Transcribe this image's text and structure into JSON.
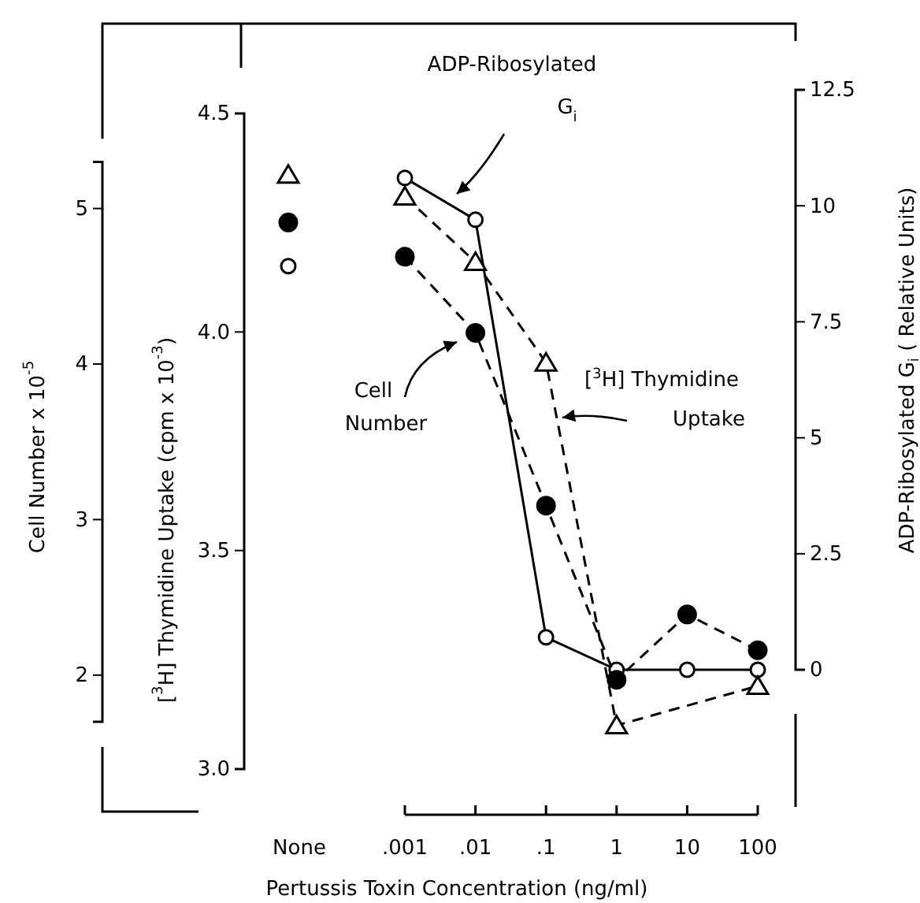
{
  "chart_data": {
    "type": "line",
    "xlabel": "Pertussis Toxin Concentration (ng/ml)",
    "ylabel": "[$^{3}$H] Thymidine Uptake  (cpm x 10$^{-3}$)",
    "y2label": "ADP-Ribosylated G$_{i}$  ( Relative Units)",
    "y3label": "Cell Number x 10$^{-5}$",
    "categories": [
      "None",
      ".001",
      ".01",
      ".1",
      "1",
      "10",
      "100"
    ],
    "ylim": [
      3.0,
      4.5
    ],
    "yticks": [
      {
        "value": 3.0,
        "label": "3.0"
      },
      {
        "value": 3.5,
        "label": "3.5"
      },
      {
        "value": 4.0,
        "label": "4.0"
      },
      {
        "value": 4.5,
        "label": "4.5"
      }
    ],
    "y2lim": [
      0,
      12.5
    ],
    "y2ticks": [
      0,
      2.5,
      5,
      7.5,
      10,
      12.5
    ],
    "y3lim": [
      1.7,
      5.3
    ],
    "y3ticks": [
      2,
      3,
      4,
      5
    ],
    "grid": false,
    "legend": false,
    "series": [
      {
        "name": "ADP-Ribosylated G$_{i}$",
        "color": "#000000",
        "axis": "y2",
        "marker": "circle",
        "line_style": "solid",
        "values": [
          null,
          10.6,
          9.7,
          0.7,
          0,
          0,
          0
        ]
      },
      {
        "name": "Cell Number",
        "color": "#000000",
        "axis": "y3",
        "marker": "circle",
        "line_style": "dashed",
        "values": [
          null,
          4.69,
          4.2,
          3.09,
          1.97,
          2.39,
          2.16
        ]
      },
      {
        "name": "[$^{3}$H] Thymidine Uptake",
        "color": "#000000",
        "marker": "triangle",
        "line_style": "dashed",
        "values": [
          null,
          4.31,
          4.16,
          3.93,
          3.1,
          null,
          3.19
        ]
      },
      {
        "type": "scatter",
        "x": [
          "None"
        ],
        "color": "#000000",
        "axis": "y2",
        "marker": "circle",
        "values": [
          8.7
        ]
      },
      {
        "type": "scatter",
        "x": [
          "None"
        ],
        "color": "#000000",
        "axis": "y3",
        "marker": "circle",
        "values": [
          4.91
        ]
      },
      {
        "type": "scatter",
        "x": [
          "None"
        ],
        "color": "#000000",
        "marker": "triangle",
        "values": [
          4.36
        ]
      }
    ]
  }
}
